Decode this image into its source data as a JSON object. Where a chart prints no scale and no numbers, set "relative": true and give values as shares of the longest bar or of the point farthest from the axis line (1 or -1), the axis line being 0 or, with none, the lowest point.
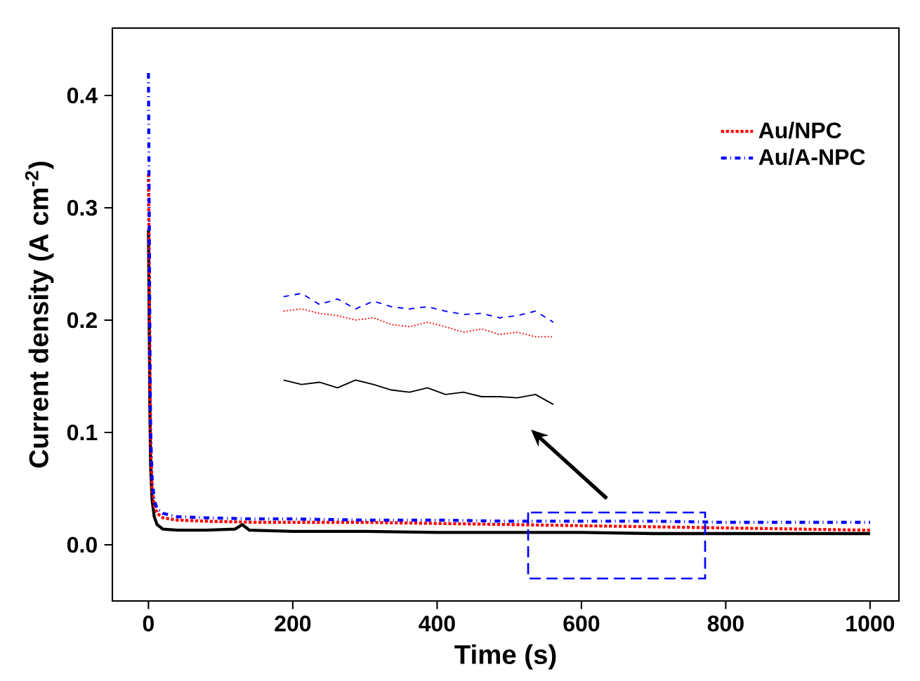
{
  "chart_data": [
    {
      "type": "line",
      "xlabel": "Time (s)",
      "ylabel": "Current density (A cm$^{-2}$)",
      "xlim": [
        -50,
        1040
      ],
      "ylim": [
        -0.05,
        0.46
      ],
      "xticks": [
        0,
        200,
        400,
        600,
        800,
        1000
      ],
      "yticks": [
        {
          "value": 0,
          "label": "0.0"
        },
        0.1,
        0.2,
        0.3,
        0.4
      ],
      "legend": "top right",
      "grid": false,
      "marker": "none",
      "series": [
        {
          "color": "#000000",
          "line_style": "solid",
          "x": [
            0,
            1,
            2,
            3,
            5,
            8,
            12,
            20,
            40,
            80,
            120,
            130,
            140,
            200,
            300,
            400,
            500,
            600,
            700,
            800,
            900,
            1000
          ],
          "values": [
            0.28,
            0.2,
            0.12,
            0.07,
            0.04,
            0.025,
            0.018,
            0.014,
            0.013,
            0.013,
            0.014,
            0.018,
            0.013,
            0.012,
            0.012,
            0.011,
            0.011,
            0.011,
            0.01,
            0.01,
            0.01,
            0.01
          ]
        },
        {
          "name": "Au/NPC",
          "color": "#ff0000",
          "line_style": "dotted",
          "x": [
            0,
            1,
            2,
            3,
            5,
            8,
            12,
            20,
            40,
            80,
            150,
            200,
            300,
            400,
            500,
            600,
            700,
            800,
            900,
            1000
          ],
          "values": [
            0.33,
            0.25,
            0.15,
            0.09,
            0.05,
            0.035,
            0.028,
            0.024,
            0.022,
            0.021,
            0.02,
            0.02,
            0.02,
            0.019,
            0.018,
            0.017,
            0.016,
            0.015,
            0.014,
            0.013
          ]
        },
        {
          "name": "Au/A-NPC",
          "color": "#0000ff",
          "line_style": "dashdot",
          "x": [
            0,
            1,
            2,
            3,
            5,
            8,
            12,
            20,
            40,
            80,
            150,
            200,
            300,
            400,
            500,
            600,
            700,
            800,
            900,
            1000
          ],
          "values": [
            0.42,
            0.3,
            0.18,
            0.1,
            0.06,
            0.04,
            0.032,
            0.028,
            0.025,
            0.024,
            0.023,
            0.023,
            0.022,
            0.022,
            0.021,
            0.021,
            0.021,
            0.02,
            0.02,
            0.02
          ]
        }
      ]
    },
    {
      "type": "line",
      "relative": true,
      "categories": [
        null,
        null,
        null,
        null,
        null,
        null,
        null,
        null,
        null,
        null,
        null,
        null,
        null,
        null,
        null,
        null
      ],
      "series": [
        {
          "color": "#000000",
          "line_style": "solid",
          "values": [
            0.22,
            0.18,
            0.2,
            0.15,
            0.22,
            0.18,
            0.13,
            0.11,
            0.15,
            0.09,
            0.11,
            0.07,
            0.07,
            0.06,
            0.09,
            0.0
          ]
        },
        {
          "color": "#ff0000",
          "line_style": "dotted",
          "values": [
            0.84,
            0.86,
            0.82,
            0.8,
            0.76,
            0.78,
            0.72,
            0.7,
            0.74,
            0.7,
            0.65,
            0.68,
            0.63,
            0.65,
            0.61,
            0.61
          ]
        },
        {
          "color": "#0000ff",
          "line_style": "dashed",
          "values": [
            0.97,
            1.0,
            0.9,
            0.95,
            0.86,
            0.93,
            0.88,
            0.86,
            0.88,
            0.84,
            0.81,
            0.82,
            0.78,
            0.8,
            0.84,
            0.74
          ]
        }
      ]
    }
  ]
}
